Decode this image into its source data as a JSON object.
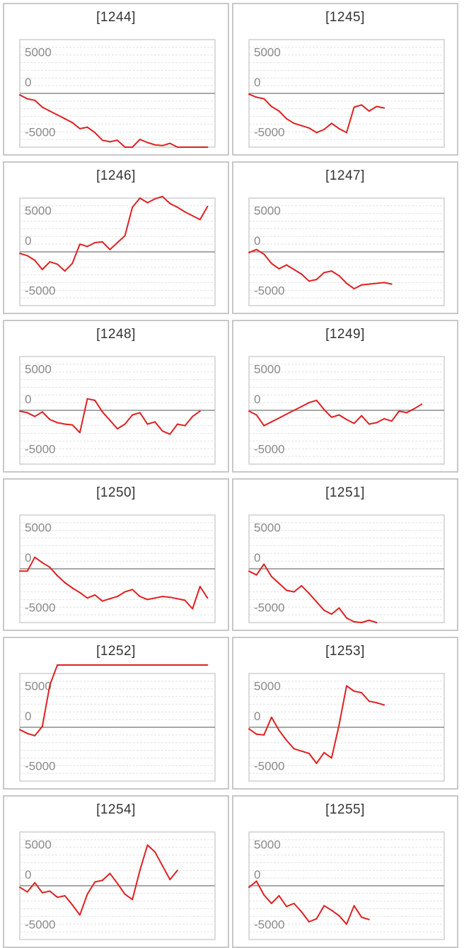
{
  "chart_data": [
    {
      "type": "line",
      "title": "[1244]",
      "ylim": [
        -7000,
        7000
      ],
      "yticks": [
        5000,
        0,
        -5000
      ],
      "series": [
        {
          "values": [
            -200,
            -700,
            -900,
            -1800,
            -2300,
            -2800,
            -3300,
            -3800,
            -4600,
            -4400,
            -5100,
            -6100,
            -6300,
            -6100,
            -7000,
            -7100,
            -6000,
            -6400,
            -6700,
            -6800,
            -6500,
            -7200,
            -7200,
            -7200,
            -7200,
            -7200
          ]
        }
      ]
    },
    {
      "type": "line",
      "title": "[1245]",
      "ylim": [
        -7000,
        7000
      ],
      "yticks": [
        5000,
        0,
        -5000
      ],
      "series": [
        {
          "values": [
            -100,
            -500,
            -700,
            -1700,
            -2300,
            -3300,
            -3900,
            -4200,
            -4500,
            -5100,
            -4700,
            -3900,
            -4600,
            -5100,
            -1800,
            -1500,
            -2300,
            -1700,
            -1900
          ]
        }
      ]
    },
    {
      "type": "line",
      "title": "[1246]",
      "ylim": [
        -7000,
        7000
      ],
      "yticks": [
        5000,
        0,
        -5000
      ],
      "series": [
        {
          "values": [
            -200,
            -500,
            -1100,
            -2300,
            -1300,
            -1600,
            -2500,
            -1500,
            1000,
            700,
            1200,
            1300,
            300,
            1200,
            2100,
            5800,
            7000,
            6400,
            6900,
            7200,
            6300,
            5800,
            5200,
            4700,
            4200,
            5900
          ]
        }
      ]
    },
    {
      "type": "line",
      "title": "[1247]",
      "ylim": [
        -7000,
        7000
      ],
      "yticks": [
        5000,
        0,
        -5000
      ],
      "series": [
        {
          "values": [
            -100,
            300,
            -300,
            -1500,
            -2200,
            -1700,
            -2300,
            -2900,
            -3800,
            -3600,
            -2700,
            -2500,
            -3100,
            -4100,
            -4800,
            -4300,
            -4200,
            -4100,
            -4000,
            -4200
          ]
        }
      ]
    },
    {
      "type": "line",
      "title": "[1248]",
      "ylim": [
        -7000,
        7000
      ],
      "yticks": [
        5000,
        0,
        -5000
      ],
      "series": [
        {
          "values": [
            -100,
            -300,
            -800,
            -200,
            -1200,
            -1600,
            -1800,
            -1900,
            -2900,
            1500,
            1300,
            -200,
            -1300,
            -2400,
            -1800,
            -600,
            -300,
            -1800,
            -1500,
            -2700,
            -3100,
            -1800,
            -2000,
            -800,
            -100
          ]
        }
      ]
    },
    {
      "type": "line",
      "title": "[1249]",
      "ylim": [
        -7000,
        7000
      ],
      "yticks": [
        5000,
        0,
        -5000
      ],
      "series": [
        {
          "values": [
            -100,
            -600,
            -2000,
            -1500,
            -1000,
            -500,
            0,
            500,
            1000,
            1300,
            100,
            -900,
            -600,
            -1200,
            -1700,
            -700,
            -1800,
            -1600,
            -1100,
            -1400,
            -100,
            -300,
            200,
            800
          ]
        }
      ]
    },
    {
      "type": "line",
      "title": "[1250]",
      "ylim": [
        -7000,
        7000
      ],
      "yticks": [
        5000,
        0,
        -5000
      ],
      "series": [
        {
          "values": [
            -300,
            -300,
            1500,
            800,
            200,
            -900,
            -1800,
            -2500,
            -3100,
            -3800,
            -3400,
            -4200,
            -3900,
            -3600,
            -3000,
            -2700,
            -3600,
            -4000,
            -3800,
            -3600,
            -3700,
            -3900,
            -4100,
            -5200,
            -2300,
            -3800
          ]
        }
      ]
    },
    {
      "type": "line",
      "title": "[1251]",
      "ylim": [
        -7000,
        7000
      ],
      "yticks": [
        5000,
        0,
        -5000
      ],
      "series": [
        {
          "values": [
            -300,
            -800,
            600,
            -1000,
            -1900,
            -2800,
            -3000,
            -2200,
            -3200,
            -4300,
            -5400,
            -5900,
            -5100,
            -6400,
            -6900,
            -7200,
            -6700,
            -7100
          ]
        }
      ]
    },
    {
      "type": "line",
      "title": "[1252]",
      "ylim": [
        -7000,
        7000
      ],
      "yticks": [
        5000,
        0,
        -5000
      ],
      "series": [
        {
          "values": [
            -300,
            -800,
            -1100,
            100,
            5500,
            8200,
            8200,
            8200,
            8200,
            8200,
            8200,
            8200,
            8200,
            8200,
            8200,
            8200,
            8200,
            8200,
            8200,
            8200,
            8200,
            8200,
            8200,
            8200,
            8200,
            8200
          ]
        }
      ]
    },
    {
      "type": "line",
      "title": "[1253]",
      "ylim": [
        -7000,
        7000
      ],
      "yticks": [
        5000,
        0,
        -5000
      ],
      "series": [
        {
          "values": [
            -200,
            -900,
            -1000,
            1300,
            -400,
            -1700,
            -2800,
            -3100,
            -3400,
            -4700,
            -3300,
            -4000,
            300,
            5400,
            4700,
            4500,
            3400,
            3200,
            2900
          ]
        }
      ]
    },
    {
      "type": "line",
      "title": "[1254]",
      "ylim": [
        -7000,
        7000
      ],
      "yticks": [
        5000,
        0,
        -5000
      ],
      "series": [
        {
          "values": [
            -200,
            -800,
            400,
            -900,
            -700,
            -1500,
            -1300,
            -2500,
            -3800,
            -1100,
            500,
            700,
            1600,
            300,
            -1100,
            -1800,
            2000,
            5300,
            4400,
            2600,
            800,
            2000
          ]
        }
      ]
    },
    {
      "type": "line",
      "title": "[1255]",
      "ylim": [
        -7000,
        7000
      ],
      "yticks": [
        5000,
        0,
        -5000
      ],
      "series": [
        {
          "values": [
            -200,
            600,
            -1200,
            -2300,
            -1300,
            -2700,
            -2300,
            -3400,
            -4700,
            -4300,
            -2600,
            -3200,
            -3900,
            -5000,
            -2600,
            -4100,
            -4400
          ]
        }
      ]
    }
  ]
}
